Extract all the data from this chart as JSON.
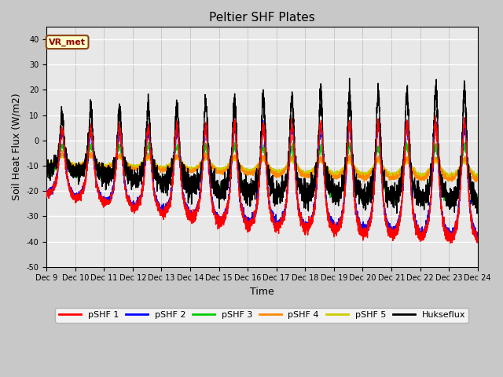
{
  "title": "Peltier SHF Plates",
  "xlabel": "Time",
  "ylabel": "Soil Heat Flux (W/m2)",
  "ylim": [
    -50,
    45
  ],
  "xlim": [
    0,
    360
  ],
  "fig_bg": "#c8c8c8",
  "plot_bg": "#e8e8e8",
  "grid_color": "#ffffff",
  "series_colors": {
    "pSHF 1": "#ff0000",
    "pSHF 2": "#0000ff",
    "pSHF 3": "#00cc00",
    "pSHF 4": "#ff8800",
    "pSHF 5": "#cccc00",
    "Hukseflux": "#000000"
  },
  "xtick_labels": [
    "Dec 9",
    "Dec 10",
    "Dec 11",
    "Dec 12",
    "Dec 13",
    "Dec 14",
    "Dec 15",
    "Dec 16",
    "Dec 17",
    "Dec 18",
    "Dec 19",
    "Dec 20",
    "Dec 21",
    "Dec 22",
    "Dec 23",
    "Dec 24"
  ],
  "xtick_positions": [
    0,
    24,
    48,
    72,
    96,
    120,
    144,
    168,
    192,
    216,
    240,
    264,
    288,
    312,
    336,
    360
  ],
  "ytick_values": [
    -50,
    -40,
    -30,
    -20,
    -10,
    0,
    10,
    20,
    30,
    40
  ],
  "annotation_text": "VR_met",
  "line_width": 1.0,
  "title_fontsize": 11,
  "tick_fontsize": 7,
  "ylabel_fontsize": 9,
  "xlabel_fontsize": 9,
  "legend_fontsize": 8
}
